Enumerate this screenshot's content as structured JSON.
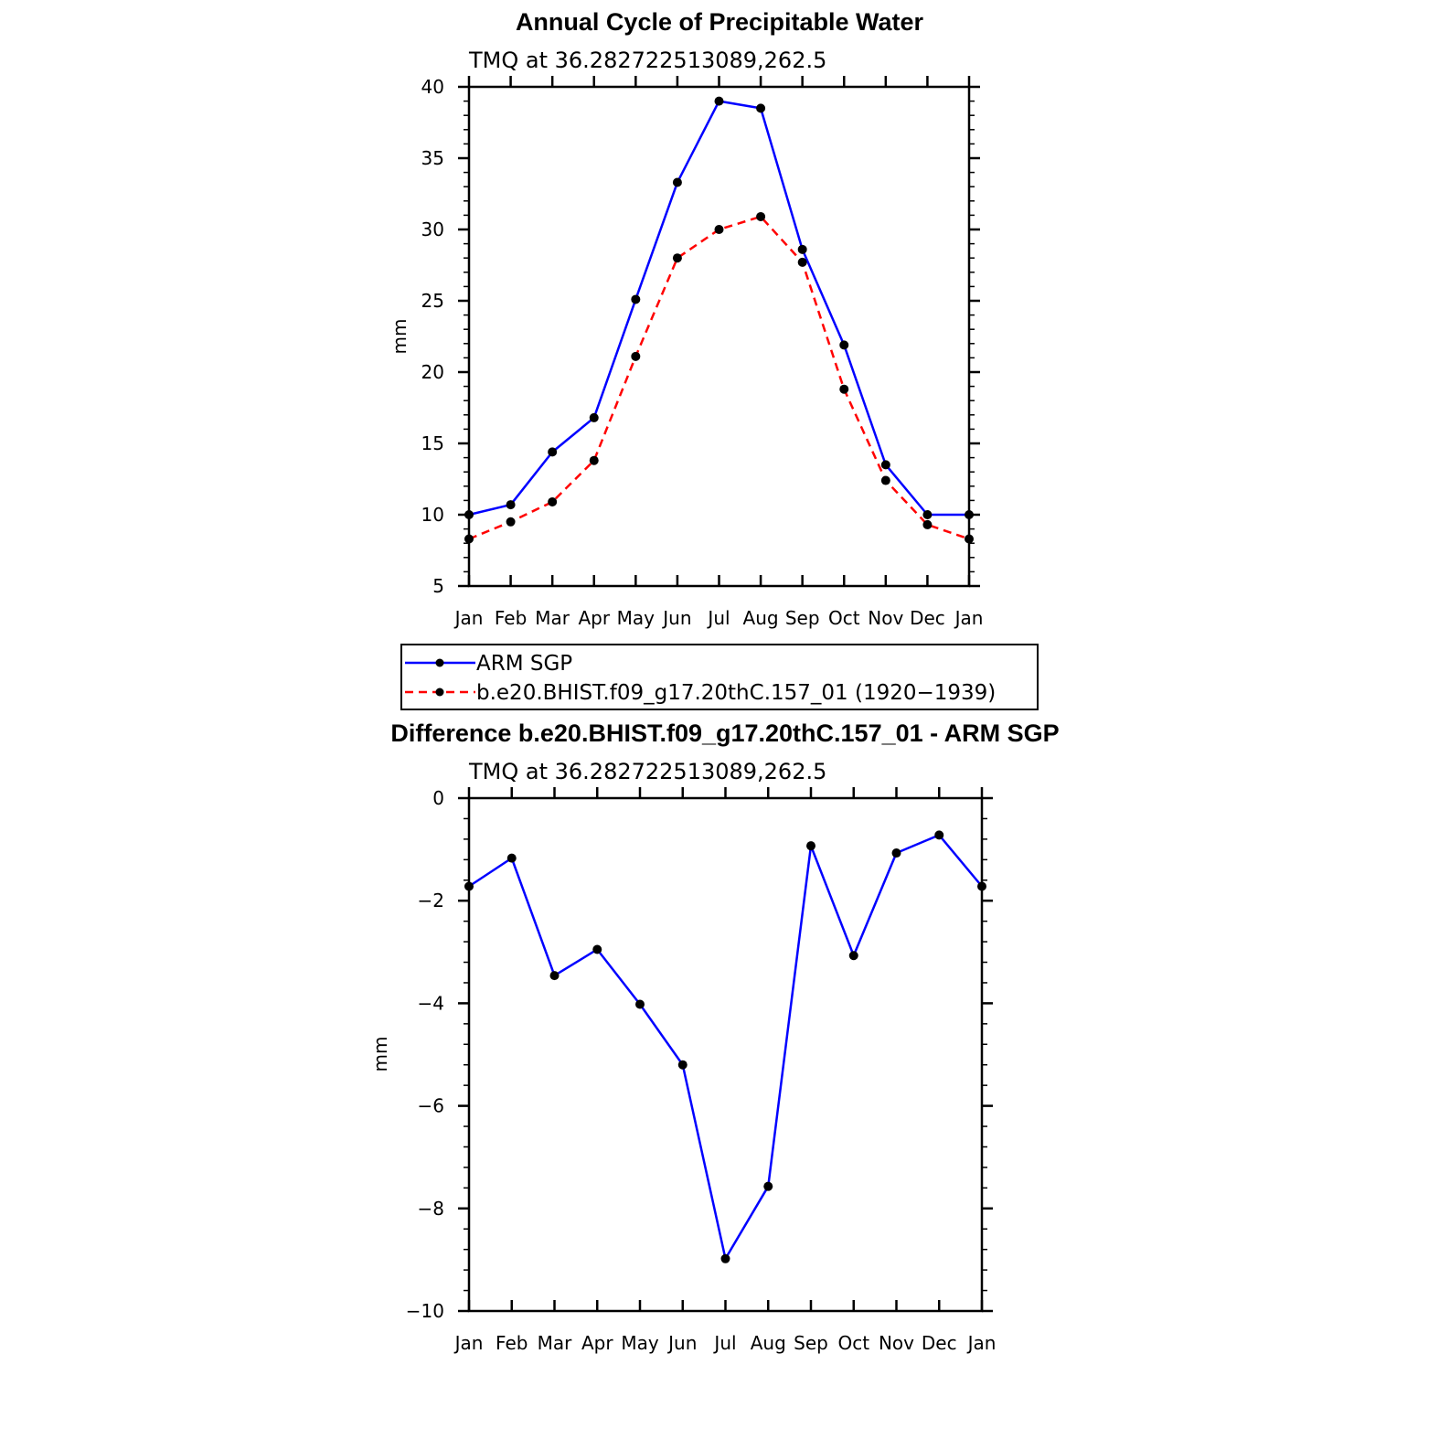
{
  "chart_data": [
    {
      "type": "line",
      "title": "Annual Cycle of Precipitable Water",
      "subtitle": "TMQ at 36.282722513089,262.5",
      "xlabel": "",
      "ylabel": "mm",
      "categories": [
        "Jan",
        "Feb",
        "Mar",
        "Apr",
        "May",
        "Jun",
        "Jul",
        "Aug",
        "Sep",
        "Oct",
        "Nov",
        "Dec",
        "Jan"
      ],
      "ylim": [
        5,
        40
      ],
      "yticks": [
        5,
        10,
        15,
        20,
        25,
        30,
        35,
        40
      ],
      "ytick_labels": [
        "5",
        "10",
        "15",
        "20",
        "25",
        "30",
        "35",
        "40"
      ],
      "grid": false,
      "series": [
        {
          "name": "ARM SGP",
          "color": "#0000ff",
          "style": "solid",
          "marker": "dot",
          "values": [
            10.0,
            10.7,
            14.4,
            16.8,
            25.1,
            33.3,
            39.0,
            38.5,
            28.6,
            21.9,
            13.5,
            10.0,
            10.0
          ]
        },
        {
          "name": "b.e20.BHIST.f09_g17.20thC.157_01 (1920−1939)",
          "color": "#ff0000",
          "style": "dashed",
          "marker": "dot",
          "values": [
            8.3,
            9.5,
            10.9,
            13.8,
            21.1,
            28.0,
            30.0,
            30.9,
            27.7,
            18.8,
            12.4,
            9.3,
            8.3
          ]
        }
      ],
      "legend": {
        "placement": "below",
        "entries": [
          "ARM SGP",
          "b.e20.BHIST.f09_g17.20thC.157_01 (1920−1939)"
        ]
      }
    },
    {
      "type": "line",
      "title": "Difference b.e20.BHIST.f09_g17.20thC.157_01 - ARM SGP",
      "subtitle": "TMQ at 36.282722513089,262.5",
      "xlabel": "",
      "ylabel": "mm",
      "categories": [
        "Jan",
        "Feb",
        "Mar",
        "Apr",
        "May",
        "Jun",
        "Jul",
        "Aug",
        "Sep",
        "Oct",
        "Nov",
        "Dec",
        "Jan"
      ],
      "ylim": [
        -10,
        0
      ],
      "yticks": [
        -10,
        -8,
        -6,
        -4,
        -2,
        0
      ],
      "ytick_labels": [
        "−10",
        "−8",
        "−6",
        "−4",
        "−2",
        "0"
      ],
      "grid": false,
      "series": [
        {
          "name": "Difference",
          "color": "#0000ff",
          "style": "solid",
          "marker": "dot",
          "values": [
            -1.72,
            -1.17,
            -3.46,
            -2.95,
            -4.02,
            -5.2,
            -8.98,
            -7.57,
            -0.93,
            -3.07,
            -1.07,
            -0.72,
            -1.72
          ]
        }
      ]
    }
  ]
}
